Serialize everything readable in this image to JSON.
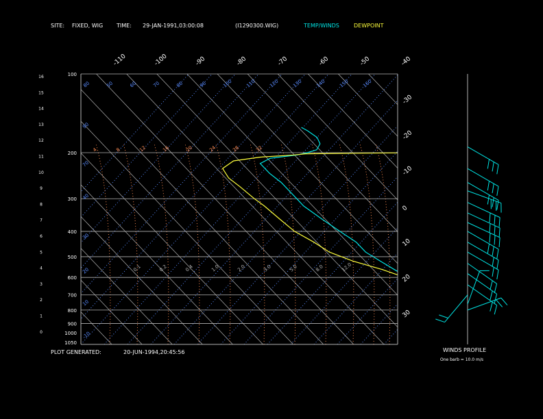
{
  "header": {
    "site_label": "SITE:",
    "site_value": "FIXED, WIG",
    "time_label": "TIME:",
    "time_value": "29-JAN-1991,03:00:08",
    "file": "(I1290300.WIG)",
    "temp_legend": "TEMP/WINDS",
    "dew_legend": "DEWPOINT"
  },
  "footer": {
    "generated_label": "PLOT GENERATED:",
    "generated_value": "20-JUN-1994,20:45:56",
    "winds_title": "WINDS PROFILE",
    "barb_note": "One barb = 10.0 m/s"
  },
  "colors": {
    "background": "#000000",
    "frame": "#b4b4b4",
    "temp": "#00e5e5",
    "dewpoint": "#ffff3c",
    "isotherm": "#b4b4b4",
    "dry_adiabat": "#5a8cff",
    "mixing_ratio": "#ff8c50",
    "wind": "#00e5e5"
  },
  "chart_data": {
    "type": "line",
    "y_scale": "log-pressure",
    "pressure_labels": [
      "100",
      "200",
      "300",
      "400",
      "500",
      "600",
      "700",
      "800",
      "900",
      "1000",
      "1050"
    ],
    "height_labels": [
      "16",
      "15",
      "14",
      "13",
      "12",
      "11",
      "10",
      "9",
      "8",
      "7",
      "6",
      "5",
      "4",
      "3",
      "2",
      "1",
      "0"
    ],
    "top_temp_labels": [
      "-110",
      "-100",
      "-90",
      "-80",
      "-70",
      "-60",
      "-50",
      "-40"
    ],
    "right_temp_labels": [
      "-30",
      "-20",
      "-10",
      "0",
      "10",
      "20",
      "30"
    ],
    "theta_labels": [
      "80",
      "50",
      "60",
      "70",
      "80",
      "90",
      "100",
      "110",
      "120",
      "130",
      "140",
      "150",
      "160"
    ],
    "mixing_ratio_labels": [
      "4",
      "8",
      "12",
      "16",
      "20",
      "24",
      "28",
      "32"
    ],
    "mixing_low_labels": [
      "0.1",
      "0.2",
      "0.4",
      "1.0",
      "2.0",
      "3.0",
      "5.0",
      "8.0",
      "12.0"
    ],
    "left_theta_labels": [
      "90",
      "70",
      "40",
      "30",
      "20",
      "10",
      "-10"
    ],
    "series": [
      {
        "name": "TEMP/WINDS",
        "points": [
          [
            770,
            -74
          ],
          [
            760,
            -76
          ],
          [
            700,
            -78
          ],
          [
            640,
            -79
          ],
          [
            600,
            -81
          ],
          [
            560,
            -83
          ],
          [
            520,
            -85
          ],
          [
            480,
            -87
          ],
          [
            440,
            -87
          ],
          [
            400,
            -89
          ],
          [
            360,
            -91
          ],
          [
            320,
            -93
          ],
          [
            300,
            -93
          ],
          [
            280,
            -93
          ],
          [
            260,
            -93
          ],
          [
            240,
            -94
          ],
          [
            220,
            -94
          ],
          [
            210,
            -89
          ],
          [
            204,
            -79
          ],
          [
            200,
            -75
          ],
          [
            195,
            -71
          ],
          [
            185,
            -68
          ],
          [
            175,
            -67
          ],
          [
            165,
            -68
          ],
          [
            160,
            -69
          ]
        ]
      },
      {
        "name": "DEWPOINT",
        "points": [
          [
            850,
            -92
          ],
          [
            840,
            -92
          ],
          [
            800,
            -87
          ],
          [
            770,
            -82
          ],
          [
            720,
            -79
          ],
          [
            680,
            -78
          ],
          [
            640,
            -80
          ],
          [
            600,
            -82
          ],
          [
            560,
            -87
          ],
          [
            520,
            -94
          ],
          [
            480,
            -99
          ],
          [
            440,
            -101
          ],
          [
            400,
            -104
          ],
          [
            360,
            -105
          ],
          [
            320,
            -106
          ],
          [
            300,
            -107
          ],
          [
            270,
            -108
          ],
          [
            250,
            -109
          ],
          [
            230,
            -108
          ],
          [
            215,
            -102
          ],
          [
            208,
            -92
          ],
          [
            204,
            -80
          ],
          [
            202,
            -76
          ],
          [
            201,
            -60
          ],
          [
            200,
            -36
          ]
        ]
      }
    ],
    "winds": [
      {
        "p": 190,
        "dir": 300,
        "spd": 30
      },
      {
        "p": 230,
        "dir": 300,
        "spd": 25
      },
      {
        "p": 260,
        "dir": 300,
        "spd": 25
      },
      {
        "p": 280,
        "dir": 290,
        "spd": 25
      },
      {
        "p": 310,
        "dir": 295,
        "spd": 25
      },
      {
        "p": 340,
        "dir": 295,
        "spd": 25
      },
      {
        "p": 370,
        "dir": 295,
        "spd": 25
      },
      {
        "p": 400,
        "dir": 300,
        "spd": 25
      },
      {
        "p": 440,
        "dir": 300,
        "spd": 20
      },
      {
        "p": 480,
        "dir": 300,
        "spd": 20
      },
      {
        "p": 530,
        "dir": 305,
        "spd": 20
      },
      {
        "p": 580,
        "dir": 305,
        "spd": 20
      },
      {
        "p": 640,
        "dir": 305,
        "spd": 15
      },
      {
        "p": 700,
        "dir": 40,
        "spd": 20
      },
      {
        "p": 760,
        "dir": 200,
        "spd": 10
      },
      {
        "p": 800,
        "dir": 250,
        "spd": 20
      }
    ]
  }
}
